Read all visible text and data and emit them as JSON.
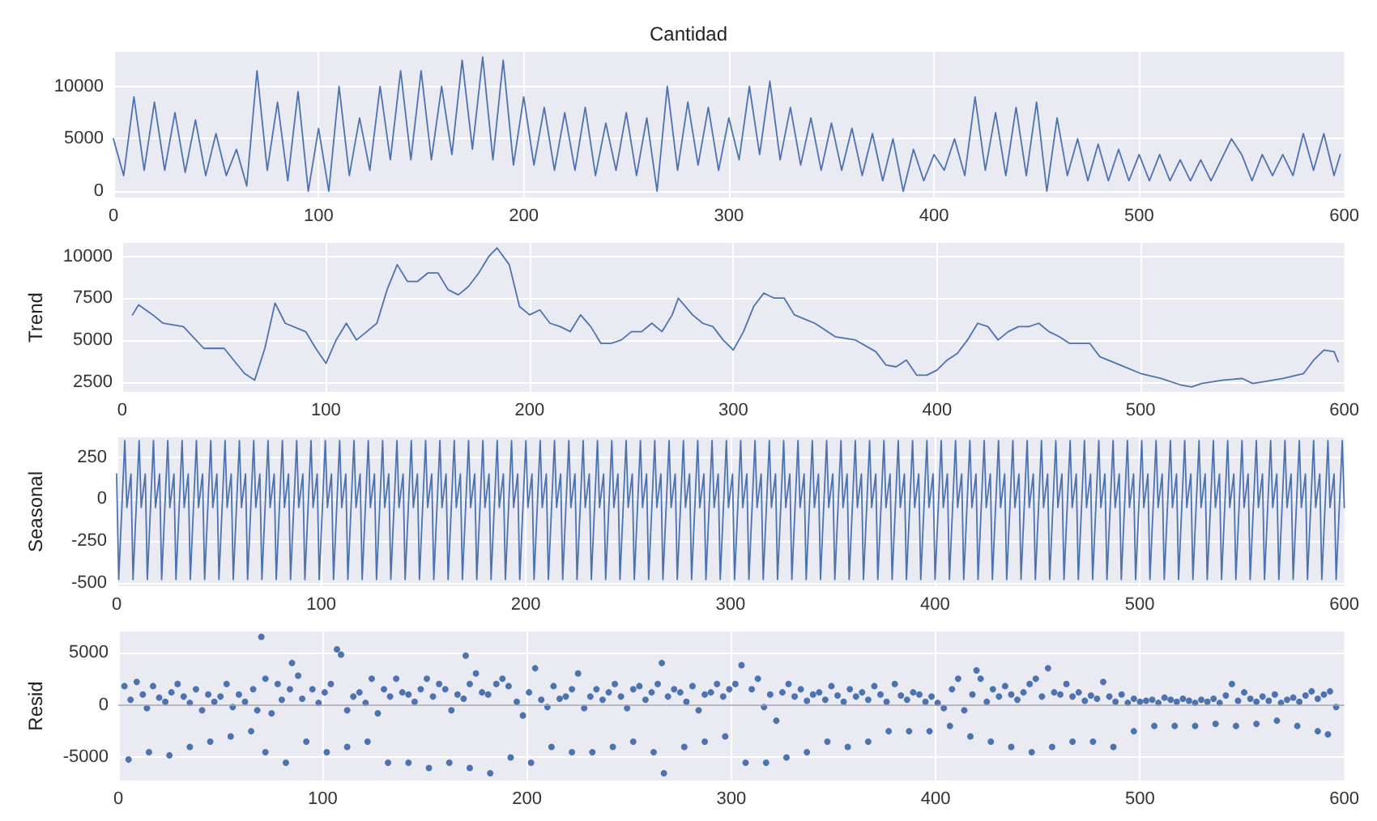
{
  "chart_data": [
    {
      "type": "line",
      "title": "Cantidad",
      "color": "#4c72b0",
      "xlim": [
        0,
        600
      ],
      "xticks": [
        0,
        100,
        200,
        300,
        400,
        500,
        600
      ],
      "ylim": [
        -600,
        13300
      ],
      "yticks": [
        0,
        5000,
        10000
      ],
      "grid": true,
      "x": [
        0,
        5,
        10,
        15,
        20,
        25,
        30,
        35,
        40,
        45,
        50,
        55,
        60,
        65,
        70,
        75,
        80,
        85,
        90,
        95,
        100,
        105,
        110,
        115,
        120,
        125,
        130,
        135,
        140,
        145,
        150,
        155,
        160,
        165,
        170,
        175,
        180,
        185,
        190,
        195,
        200,
        205,
        210,
        215,
        220,
        225,
        230,
        235,
        240,
        245,
        250,
        255,
        260,
        265,
        270,
        275,
        280,
        285,
        290,
        295,
        300,
        305,
        310,
        315,
        320,
        325,
        330,
        335,
        340,
        345,
        350,
        355,
        360,
        365,
        370,
        375,
        380,
        385,
        390,
        395,
        400,
        405,
        410,
        415,
        420,
        425,
        430,
        435,
        440,
        445,
        450,
        455,
        460,
        465,
        470,
        475,
        480,
        485,
        490,
        495,
        500,
        505,
        510,
        515,
        520,
        525,
        530,
        535,
        540,
        545,
        550,
        555,
        560,
        565,
        570,
        575,
        580,
        585,
        590,
        595,
        598
      ],
      "values": [
        5000,
        1500,
        9000,
        2000,
        8500,
        2000,
        7500,
        1800,
        6800,
        1500,
        5500,
        1500,
        4000,
        500,
        11500,
        2000,
        8500,
        1000,
        9500,
        0,
        6000,
        0,
        10000,
        1500,
        7000,
        2000,
        10000,
        3000,
        11500,
        3000,
        11500,
        3000,
        10000,
        3500,
        12500,
        4000,
        12800,
        3000,
        12500,
        2500,
        9000,
        2500,
        8000,
        2000,
        7500,
        2000,
        8000,
        1500,
        6500,
        2000,
        7500,
        1500,
        7000,
        0,
        10000,
        2000,
        8500,
        2500,
        8000,
        2000,
        7000,
        3000,
        10000,
        3500,
        10500,
        3000,
        8000,
        2500,
        7000,
        2000,
        6500,
        2000,
        6000,
        1500,
        5500,
        1000,
        5000,
        0,
        4000,
        1000,
        3500,
        2000,
        5000,
        1500,
        9000,
        2000,
        7500,
        1500,
        8000,
        1500,
        8500,
        0,
        7000,
        1500,
        5000,
        1000,
        4500,
        1000,
        4000,
        1000,
        3500,
        1000,
        3500,
        1000,
        3000,
        1000,
        3000,
        1000,
        3000,
        5000,
        3500,
        1000,
        3500,
        1500,
        3500,
        1500,
        5500,
        2000,
        5500,
        1500,
        3500
      ]
    },
    {
      "type": "line",
      "ylabel": "Trend",
      "color": "#4c72b0",
      "xlim": [
        0,
        600
      ],
      "xticks": [
        0,
        100,
        200,
        300,
        400,
        500,
        600
      ],
      "ylim": [
        1900,
        10800
      ],
      "yticks": [
        2500,
        5000,
        7500,
        10000
      ],
      "grid": true,
      "x": [
        5,
        8,
        15,
        20,
        30,
        40,
        50,
        60,
        65,
        70,
        75,
        80,
        90,
        95,
        100,
        105,
        110,
        115,
        120,
        125,
        130,
        135,
        140,
        145,
        150,
        155,
        160,
        165,
        170,
        175,
        180,
        184,
        190,
        195,
        200,
        205,
        210,
        215,
        220,
        225,
        230,
        235,
        240,
        245,
        250,
        255,
        260,
        265,
        270,
        273,
        280,
        285,
        290,
        295,
        300,
        305,
        310,
        315,
        320,
        325,
        330,
        340,
        350,
        360,
        370,
        375,
        380,
        385,
        390,
        395,
        400,
        405,
        410,
        415,
        420,
        425,
        430,
        435,
        440,
        445,
        450,
        455,
        460,
        465,
        470,
        475,
        480,
        490,
        500,
        510,
        520,
        525,
        530,
        540,
        550,
        555,
        560,
        570,
        580,
        585,
        590,
        595,
        597
      ],
      "values": [
        6500,
        7100,
        6500,
        6000,
        5800,
        4500,
        4500,
        3000,
        2600,
        4500,
        7200,
        6000,
        5500,
        4500,
        3600,
        5000,
        6000,
        5000,
        5500,
        6000,
        8000,
        9500,
        8500,
        8500,
        9000,
        9000,
        8000,
        7700,
        8200,
        9000,
        10000,
        10500,
        9500,
        7000,
        6500,
        6800,
        6000,
        5800,
        5500,
        6500,
        5800,
        4800,
        4800,
        5000,
        5500,
        5500,
        6000,
        5500,
        6500,
        7500,
        6500,
        6000,
        5800,
        5000,
        4400,
        5500,
        7000,
        7800,
        7500,
        7500,
        6500,
        6000,
        5200,
        5000,
        4300,
        3500,
        3400,
        3800,
        2900,
        2900,
        3200,
        3800,
        4200,
        5000,
        6000,
        5800,
        5000,
        5500,
        5800,
        5800,
        6000,
        5500,
        5200,
        4800,
        4800,
        4800,
        4000,
        3500,
        3000,
        2700,
        2300,
        2200,
        2400,
        2600,
        2700,
        2400,
        2500,
        2700,
        3000,
        3800,
        4400,
        4300,
        3700
      ]
    },
    {
      "type": "line",
      "ylabel": "Seasonal",
      "color": "#4c72b0",
      "xlim": [
        0,
        600
      ],
      "xticks": [
        0,
        100,
        200,
        300,
        400,
        500,
        600
      ],
      "ylim": [
        -520,
        370
      ],
      "yticks": [
        -500,
        -250,
        0,
        250
      ],
      "grid": true,
      "x": [
        0,
        1,
        4,
        5,
        7,
        8,
        11,
        12,
        14,
        15,
        18,
        19,
        21,
        22,
        25,
        26,
        28,
        29,
        32,
        33,
        35,
        36,
        39,
        40,
        42,
        43,
        46,
        47,
        49,
        50,
        53,
        54,
        56,
        57,
        60,
        61,
        63,
        64,
        67,
        68,
        70,
        71,
        74,
        75,
        77,
        78,
        81,
        82,
        84,
        85,
        88,
        89,
        91,
        92,
        95,
        96,
        98,
        99,
        102,
        103,
        105,
        106,
        109,
        110,
        112,
        113,
        116,
        117,
        119,
        120,
        123,
        124,
        126,
        127,
        130,
        131,
        133,
        134,
        137,
        138,
        140,
        141,
        144,
        145,
        147,
        148,
        151,
        152,
        154,
        155,
        158,
        159,
        161,
        162,
        165,
        166,
        168,
        169,
        172,
        173,
        175,
        176,
        179,
        180,
        182,
        183,
        186,
        187,
        189,
        190,
        193,
        194,
        196,
        197,
        200,
        201,
        203,
        204,
        207,
        208,
        210,
        211,
        214,
        215,
        217,
        218,
        221,
        222,
        224,
        225,
        228,
        229,
        231,
        232,
        235,
        236,
        238,
        239,
        242,
        243,
        245,
        246,
        249,
        250,
        252,
        253,
        256,
        257,
        259,
        260,
        263,
        264,
        266,
        267,
        270,
        271,
        273,
        274,
        277,
        278,
        280,
        281,
        284,
        285,
        287,
        288,
        291,
        292,
        294,
        295,
        298,
        299,
        301,
        302,
        305,
        306,
        308,
        309,
        312,
        313,
        315,
        316,
        319,
        320,
        322,
        323,
        326,
        327,
        329,
        330,
        333,
        334,
        336,
        337,
        340,
        341,
        343,
        344,
        347,
        348,
        350,
        351,
        354,
        355,
        357,
        358,
        361,
        362,
        364,
        365,
        368,
        369,
        371,
        372,
        375,
        376,
        378,
        379,
        382,
        383,
        385,
        386,
        389,
        390,
        392,
        393,
        396,
        397,
        399,
        400,
        403,
        404,
        406,
        407,
        410,
        411,
        413,
        414,
        417,
        418,
        420,
        421,
        424,
        425,
        427,
        428,
        431,
        432,
        434,
        435,
        438,
        439,
        441,
        442,
        445,
        446,
        448,
        449,
        452,
        453,
        455,
        456,
        459,
        460,
        462,
        463,
        466,
        467,
        469,
        470,
        473,
        474,
        476,
        477,
        480,
        481,
        483,
        484,
        487,
        488,
        490,
        491,
        494,
        495,
        497,
        498,
        501,
        502,
        504,
        505,
        508,
        509,
        511,
        512,
        515,
        516,
        518,
        519,
        522,
        523,
        525,
        526,
        529,
        530,
        532,
        533,
        536,
        537,
        539,
        540,
        543,
        544,
        546,
        547,
        550,
        551,
        553,
        554,
        557,
        558,
        560,
        561,
        564,
        565,
        567,
        568,
        571,
        572,
        574,
        575,
        578,
        579,
        581,
        582,
        585,
        586,
        588,
        589,
        592,
        593,
        595,
        596,
        599,
        600
      ],
      "values": [
        150,
        -480,
        350,
        -50,
        150,
        -480,
        350,
        -50,
        150,
        -480,
        350,
        -50,
        150,
        -480,
        350,
        -50,
        150,
        -480,
        350,
        -50,
        150,
        -480,
        350,
        -50,
        150,
        -480,
        350,
        -50,
        150,
        -480,
        350,
        -50,
        150,
        -480,
        350,
        -50,
        150,
        -480,
        350,
        -50,
        150,
        -480,
        350,
        -50,
        150,
        -480,
        350,
        -50,
        150,
        -480,
        350,
        -50,
        150,
        -480,
        350,
        -50,
        150,
        -480,
        350,
        -50,
        150,
        -480,
        350,
        -50,
        150,
        -480,
        350,
        -50,
        150,
        -480,
        350,
        -50,
        150,
        -480,
        350,
        -50,
        150,
        -480,
        350,
        -50,
        150,
        -480,
        350,
        -50,
        150,
        -480,
        350,
        -50,
        150,
        -480,
        350,
        -50,
        150,
        -480,
        350,
        -50,
        150,
        -480,
        350,
        -50,
        150,
        -480,
        350,
        -50,
        150,
        -480,
        350,
        -50,
        150,
        -480,
        350,
        -50,
        150,
        -480,
        350,
        -50,
        150,
        -480,
        350,
        -50,
        150,
        -480,
        350,
        -50,
        150,
        -480,
        350,
        -50,
        150,
        -480,
        350,
        -50,
        150,
        -480,
        350,
        -50,
        150,
        -480,
        350,
        -50,
        150,
        -480,
        350,
        -50,
        150,
        -480,
        350,
        -50,
        150,
        -480,
        350,
        -50,
        150,
        -480,
        350,
        -50,
        150,
        -480,
        350,
        -50,
        150,
        -480,
        350,
        -50,
        150,
        -480,
        350,
        -50,
        150,
        -480,
        350,
        -50,
        150,
        -480,
        350,
        -50,
        150,
        -480,
        350,
        -50,
        150,
        -480,
        350,
        -50,
        150,
        -480,
        350,
        -50,
        150,
        -480,
        350,
        -50,
        150,
        -480,
        350,
        -50,
        150,
        -480,
        350,
        -50,
        150,
        -480,
        350,
        -50,
        150,
        -480,
        350,
        -50,
        150,
        -480,
        350,
        -50,
        150,
        -480,
        350,
        -50,
        150,
        -480,
        350,
        -50,
        150,
        -480,
        350,
        -50,
        150,
        -480,
        350,
        -50,
        150,
        -480,
        350,
        -50,
        150,
        -480,
        350,
        -50,
        150,
        -480,
        350,
        -50,
        150,
        -480,
        350,
        -50,
        150,
        -480,
        350,
        -50,
        150,
        -480,
        350,
        -50,
        150,
        -480,
        350,
        -50,
        150,
        -480,
        350,
        -50,
        150,
        -480,
        350,
        -50,
        150,
        -480,
        350,
        -50,
        150,
        -480,
        350,
        -50,
        150,
        -480,
        350,
        -50,
        150,
        -480,
        350,
        -50,
        150,
        -480,
        350,
        -50,
        150,
        -480,
        350,
        -50,
        150,
        -480,
        350,
        -50,
        150,
        -480,
        350,
        -50,
        150,
        -480,
        350,
        -50,
        150,
        -480,
        350,
        -50,
        150,
        -480,
        350,
        -50,
        150,
        -480,
        350,
        -50,
        150,
        -480,
        350,
        -50,
        150,
        -480,
        350,
        -50,
        150,
        -480,
        350,
        -50,
        150,
        -480,
        350,
        -50,
        150,
        -480,
        350,
        -50,
        150,
        -480,
        350,
        -50,
        150,
        -480,
        350,
        -50,
        150,
        -480,
        350,
        -50
      ]
    },
    {
      "type": "scatter",
      "ylabel": "Resid",
      "color": "#4c72b0",
      "marker": "circle",
      "xlim": [
        0,
        600
      ],
      "xticks": [
        0,
        100,
        200,
        300,
        400,
        500,
        600
      ],
      "ylim": [
        -7200,
        7000
      ],
      "yticks": [
        -5000,
        0,
        5000
      ],
      "grid": true,
      "ref_lines": [
        {
          "axis": "y",
          "value": 0,
          "color": "#a0a0a8"
        }
      ],
      "x": [
        3,
        6,
        9,
        12,
        14,
        17,
        20,
        23,
        26,
        29,
        32,
        35,
        38,
        41,
        44,
        47,
        50,
        53,
        56,
        59,
        62,
        66,
        68,
        72,
        75,
        78,
        80,
        84,
        88,
        90,
        95,
        98,
        101,
        104,
        112,
        115,
        118,
        121,
        124,
        127,
        130,
        133,
        136,
        139,
        142,
        145,
        148,
        151,
        154,
        157,
        160,
        163,
        166,
        169,
        172,
        175,
        178,
        181,
        185,
        188,
        191,
        195,
        198,
        201,
        204,
        207,
        210,
        213,
        216,
        219,
        222,
        225,
        228,
        231,
        234,
        237,
        240,
        243,
        246,
        249,
        252,
        255,
        258,
        261,
        264,
        269,
        272,
        275,
        278,
        281,
        284,
        287,
        290,
        293,
        296,
        299,
        302,
        310,
        313,
        316,
        319,
        322,
        325,
        328,
        331,
        334,
        337,
        340,
        343,
        346,
        349,
        352,
        355,
        358,
        361,
        364,
        367,
        370,
        373,
        376,
        380,
        383,
        386,
        389,
        392,
        395,
        398,
        401,
        404,
        408,
        411,
        414,
        418,
        422,
        425,
        428,
        431,
        434,
        437,
        440,
        443,
        446,
        449,
        452,
        458,
        461,
        464,
        467,
        470,
        473,
        476,
        479,
        482,
        485,
        488,
        491,
        494,
        497,
        500,
        503,
        506,
        509,
        512,
        515,
        518,
        521,
        524,
        527,
        530,
        533,
        536,
        539,
        542,
        545,
        548,
        551,
        554,
        557,
        560,
        563,
        566,
        569,
        572,
        575,
        578,
        581,
        584,
        587,
        590,
        593,
        596,
        5,
        15,
        25,
        35,
        45,
        55,
        65,
        72,
        82,
        92,
        102,
        112,
        122,
        132,
        142,
        152,
        162,
        172,
        182,
        192,
        202,
        212,
        222,
        232,
        242,
        252,
        262,
        267,
        277,
        287,
        297,
        307,
        317,
        327,
        337,
        347,
        357,
        367,
        377,
        387,
        397,
        407,
        417,
        427,
        437,
        447,
        457,
        467,
        477,
        487,
        497,
        507,
        517,
        527,
        537,
        547,
        557,
        567,
        577,
        587,
        592,
        70,
        107,
        109,
        85,
        170,
        266,
        305,
        455,
        420
      ],
      "values": [
        1800,
        500,
        2200,
        1000,
        -300,
        1800,
        700,
        300,
        1200,
        2000,
        800,
        200,
        1500,
        -500,
        1000,
        300,
        800,
        2000,
        -200,
        1000,
        300,
        1500,
        -500,
        2500,
        -800,
        2000,
        500,
        1500,
        2800,
        600,
        1500,
        200,
        1200,
        2000,
        -500,
        800,
        1200,
        200,
        2500,
        -800,
        1500,
        800,
        2500,
        1200,
        1000,
        300,
        1500,
        2500,
        800,
        2000,
        1500,
        -500,
        1000,
        600,
        2000,
        3000,
        1200,
        1000,
        2000,
        2500,
        1800,
        300,
        -1000,
        1200,
        3500,
        500,
        -200,
        1800,
        600,
        800,
        1500,
        3000,
        -300,
        800,
        1500,
        500,
        1200,
        2000,
        800,
        -300,
        1500,
        1800,
        500,
        1200,
        2000,
        800,
        1500,
        1200,
        300,
        1800,
        -500,
        1000,
        1200,
        2000,
        800,
        1500,
        2000,
        1500,
        2500,
        -200,
        1000,
        -1500,
        1200,
        2000,
        800,
        1500,
        400,
        1000,
        1200,
        500,
        1800,
        900,
        300,
        1500,
        800,
        1200,
        500,
        1800,
        1000,
        300,
        2000,
        900,
        500,
        1200,
        1000,
        300,
        800,
        200,
        -300,
        1500,
        2500,
        -500,
        1000,
        2500,
        300,
        1500,
        800,
        1800,
        1000,
        500,
        1200,
        2000,
        2500,
        800,
        1200,
        1000,
        2000,
        800,
        1200,
        400,
        900,
        600,
        2200,
        800,
        300,
        1000,
        200,
        600,
        300,
        400,
        500,
        200,
        700,
        500,
        300,
        600,
        400,
        200,
        500,
        300,
        600,
        200,
        900,
        2000,
        400,
        1200,
        600,
        300,
        800,
        400,
        1000,
        200,
        500,
        700,
        300,
        900,
        1300,
        600,
        1000,
        1300,
        -200,
        -5200,
        -4500,
        -4800,
        -4000,
        -3500,
        -3000,
        -2500,
        -4500,
        -5500,
        -3500,
        -4500,
        -4000,
        -3500,
        -5500,
        -5500,
        -6000,
        -5500,
        -6000,
        -6500,
        -5000,
        -5500,
        -4000,
        -4500,
        -4500,
        -4000,
        -3500,
        -4500,
        -6500,
        -4000,
        -3500,
        -3000,
        -5500,
        -5500,
        -5000,
        -4500,
        -3500,
        -4000,
        -3500,
        -2500,
        -2500,
        -2500,
        -2000,
        -3000,
        -3500,
        -4000,
        -4500,
        -4000,
        -3500,
        -3500,
        -4000,
        -2500,
        -2000,
        -2000,
        -2000,
        -1800,
        -2000,
        -1800,
        -1500,
        -2000,
        -2500,
        -2800,
        6500,
        5300,
        4800,
        4000,
        4700,
        4000,
        3800,
        3500,
        3300
      ]
    }
  ]
}
